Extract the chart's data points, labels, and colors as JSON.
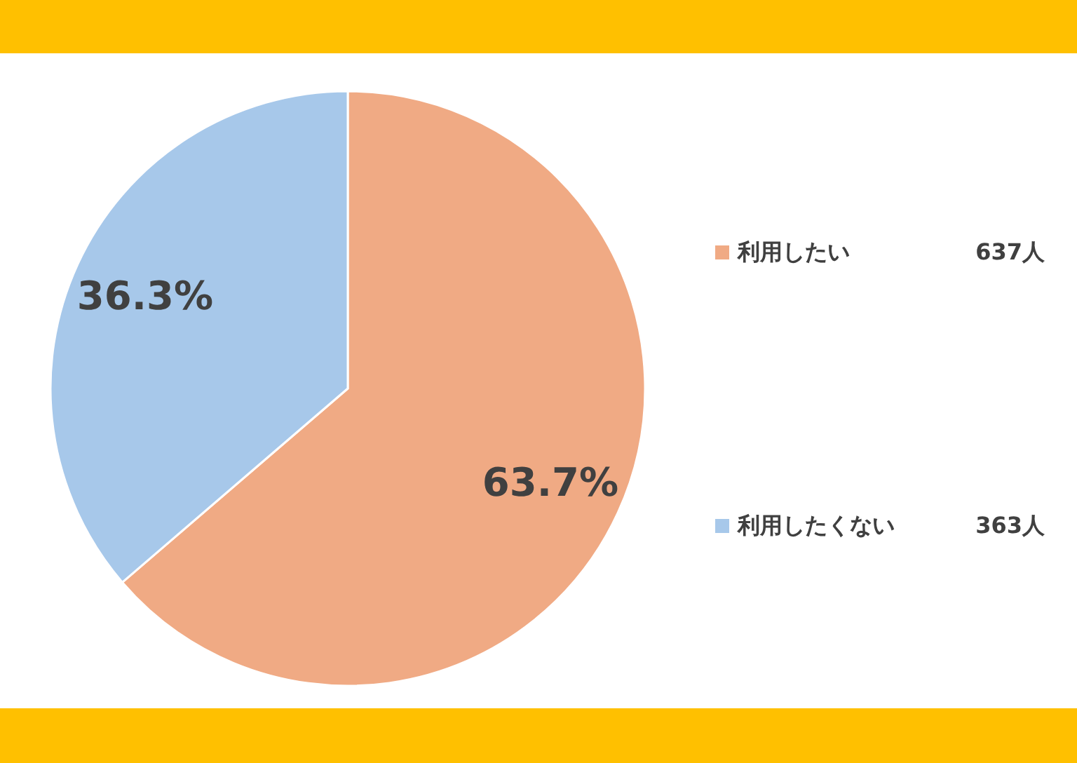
{
  "chart_data": {
    "type": "pie",
    "categories": [
      "利用したい",
      "利用したくない"
    ],
    "values": [
      63.7,
      36.3
    ],
    "colors": [
      "#f0aa84",
      "#a7c8ea"
    ],
    "value_labels": [
      "63.7%",
      "36.3%"
    ],
    "legend": "right",
    "annotations": [
      "637人",
      "363人"
    ]
  }
}
